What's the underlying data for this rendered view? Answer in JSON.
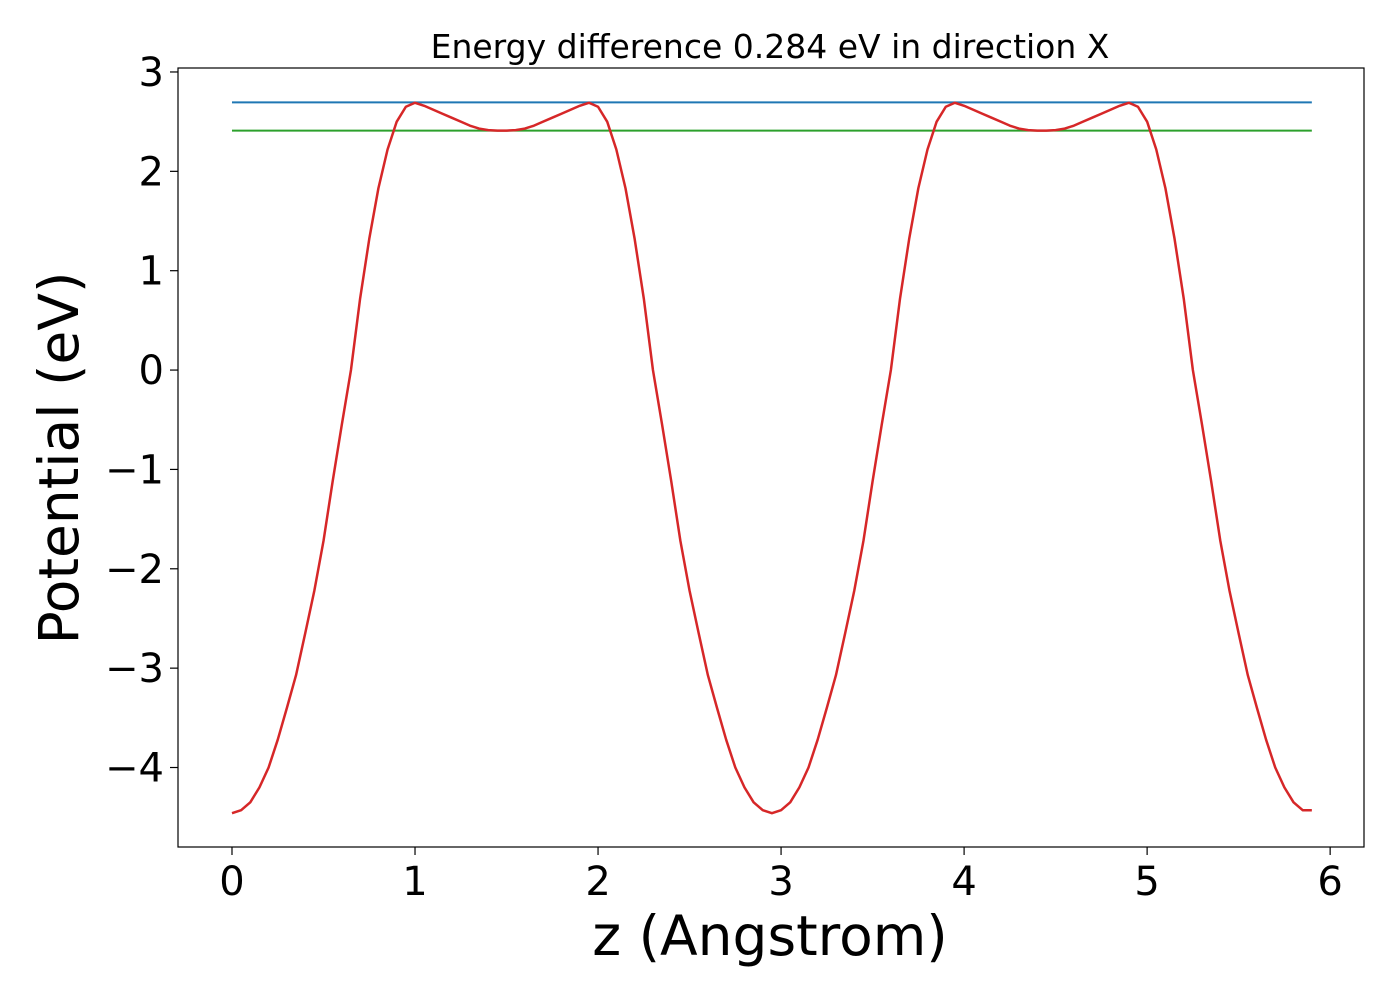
{
  "chart_data": {
    "type": "line",
    "title": "Energy difference 0.284 eV in direction X",
    "xlabel": "z (Angstrom)",
    "ylabel": "Potential (eV)",
    "x": [
      0,
      0.05,
      0.1,
      0.15,
      0.2,
      0.25,
      0.3,
      0.35,
      0.4,
      0.45,
      0.5,
      0.55,
      0.6,
      0.65,
      0.7,
      0.75,
      0.8,
      0.85,
      0.9,
      0.95,
      1,
      1.05,
      1.1,
      1.15,
      1.2,
      1.25,
      1.3,
      1.35,
      1.4,
      1.45,
      1.5,
      1.55,
      1.6,
      1.65,
      1.7,
      1.75,
      1.8,
      1.85,
      1.9,
      1.95,
      2,
      2.05,
      2.1,
      2.15,
      2.2,
      2.25,
      2.3,
      2.35,
      2.4,
      2.45,
      2.5,
      2.55,
      2.6,
      2.65,
      2.7,
      2.75,
      2.8,
      2.85,
      2.9,
      2.95,
      3,
      3.05,
      3.1,
      3.15,
      3.2,
      3.25,
      3.3,
      3.35,
      3.4,
      3.45,
      3.5,
      3.55,
      3.6,
      3.65,
      3.7,
      3.75,
      3.8,
      3.85,
      3.9,
      3.95,
      4,
      4.05,
      4.1,
      4.15,
      4.2,
      4.25,
      4.3,
      4.35,
      4.4,
      4.45,
      4.5,
      4.55,
      4.6,
      4.65,
      4.7,
      4.75,
      4.8,
      4.85,
      4.9,
      4.95,
      5,
      5.05,
      5.1,
      5.15,
      5.2,
      5.25,
      5.3,
      5.35,
      5.4,
      5.45,
      5.5,
      5.55,
      5.6,
      5.65,
      5.7,
      5.75,
      5.8,
      5.85,
      5.9
    ],
    "series": [
      {
        "color": "#d62728",
        "values": [
          -4.46,
          -4.43,
          -4.35,
          -4.2,
          -4.0,
          -3.72,
          -3.4,
          -3.07,
          -2.65,
          -2.22,
          -1.72,
          -1.12,
          -0.55,
          0.0,
          0.72,
          1.32,
          1.83,
          2.22,
          2.5,
          2.65,
          2.69,
          2.66,
          2.62,
          2.58,
          2.54,
          2.5,
          2.46,
          2.43,
          2.415,
          2.41,
          2.41,
          2.415,
          2.43,
          2.46,
          2.5,
          2.54,
          2.58,
          2.62,
          2.66,
          2.69,
          2.65,
          2.5,
          2.22,
          1.83,
          1.32,
          0.72,
          0.0,
          -0.55,
          -1.12,
          -1.72,
          -2.22,
          -2.65,
          -3.07,
          -3.4,
          -3.72,
          -4.0,
          -4.2,
          -4.35,
          -4.43,
          -4.46,
          -4.43,
          -4.35,
          -4.2,
          -4.0,
          -3.72,
          -3.4,
          -3.07,
          -2.65,
          -2.22,
          -1.72,
          -1.12,
          -0.55,
          0.0,
          0.72,
          1.32,
          1.83,
          2.22,
          2.5,
          2.65,
          2.69,
          2.66,
          2.62,
          2.58,
          2.54,
          2.5,
          2.46,
          2.43,
          2.415,
          2.41,
          2.41,
          2.415,
          2.43,
          2.46,
          2.5,
          2.54,
          2.58,
          2.62,
          2.66,
          2.69,
          2.65,
          2.5,
          2.22,
          1.83,
          1.32,
          0.72,
          0.0,
          -0.55,
          -1.12,
          -1.72,
          -2.22,
          -2.65,
          -3.07,
          -3.4,
          -3.72,
          -4.0,
          -4.2,
          -4.35,
          -4.43,
          -4.43
        ]
      }
    ],
    "hlines": [
      {
        "value": 2.694,
        "color": "#1f77b4"
      },
      {
        "value": 2.41,
        "color": "#2ca02c"
      }
    ],
    "xlim": [
      -0.295,
      6.185
    ],
    "xticks": [
      0,
      1,
      2,
      3,
      4,
      5,
      6
    ],
    "ylim": [
      -4.8,
      3.04
    ],
    "yticks": [
      {
        "value": -4,
        "label": "−4"
      },
      {
        "value": -3,
        "label": "−3"
      },
      {
        "value": -2,
        "label": "−2"
      },
      {
        "value": -1,
        "label": "−1"
      },
      0,
      1,
      2,
      3
    ]
  }
}
